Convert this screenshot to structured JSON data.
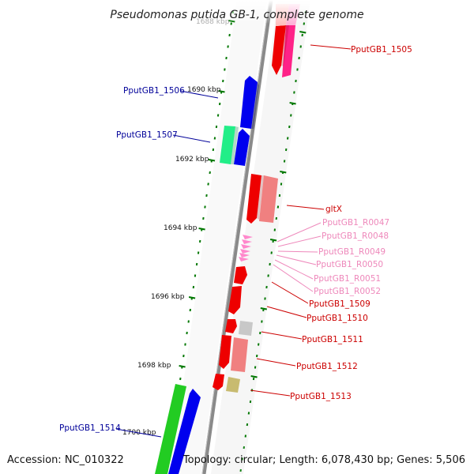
{
  "title": "Pseudomonas putida GB-1, complete genome",
  "footer": {
    "accession": "Accession: NC_010322",
    "summary": "Topology: circular; Length: 6,078,430 bp; Genes: 5,506"
  },
  "kbp_labels": [
    "1688 kbp",
    "1690 kbp",
    "1692 kbp",
    "1694 kbp",
    "1696 kbp",
    "1698 kbp",
    "1700 kbp"
  ],
  "gene_labels": [
    "PputGB1_1505",
    "PputGB1_1506",
    "PputGB1_1507",
    "gltX",
    "PputGB1_R0047",
    "PputGB1_R0048",
    "PputGB1_R0049",
    "PputGB1_R0050",
    "PputGB1_R0051",
    "PputGB1_R0052",
    "PputGB1_1509",
    "PputGB1_1510",
    "PputGB1_1511",
    "PputGB1_1512",
    "PputGB1_1513",
    "PputGB1_1514"
  ],
  "colors": {
    "forward_label": "#cc0000",
    "reverse_label": "#000099",
    "rna_label": "#ee88bb",
    "tick": "#007700",
    "backbone": "#888888"
  }
}
